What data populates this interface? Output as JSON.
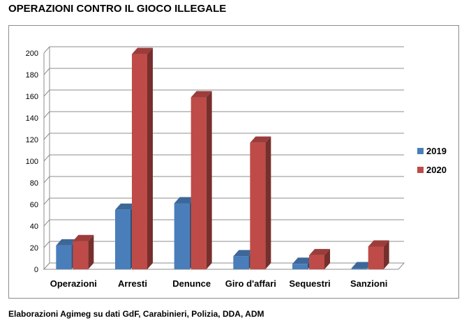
{
  "chart_data": {
    "type": "bar",
    "title": "OPERAZIONI CONTRO IL GIOCO ILLEGALE",
    "caption": "Elaborazioni Agimeg su dati GdF, Carabinieri, Polizia, DDA, ADM",
    "categories": [
      "Operazioni",
      "Arresti",
      "Denunce",
      "Giro d'affari",
      "Sequestri",
      "Sanzioni"
    ],
    "series": [
      {
        "name": "2019",
        "values": [
          22,
          55,
          61,
          12,
          5,
          1
        ],
        "color": "#4a7ebb"
      },
      {
        "name": "2020",
        "values": [
          26,
          199,
          159,
          117,
          13,
          21
        ],
        "color": "#be4b48"
      }
    ],
    "ylim": [
      0,
      200
    ],
    "yticks": [
      0,
      20,
      40,
      60,
      80,
      100,
      120,
      140,
      160,
      180,
      200
    ],
    "grid": true,
    "legend_position": "right",
    "style": "3d-clustered-column"
  }
}
